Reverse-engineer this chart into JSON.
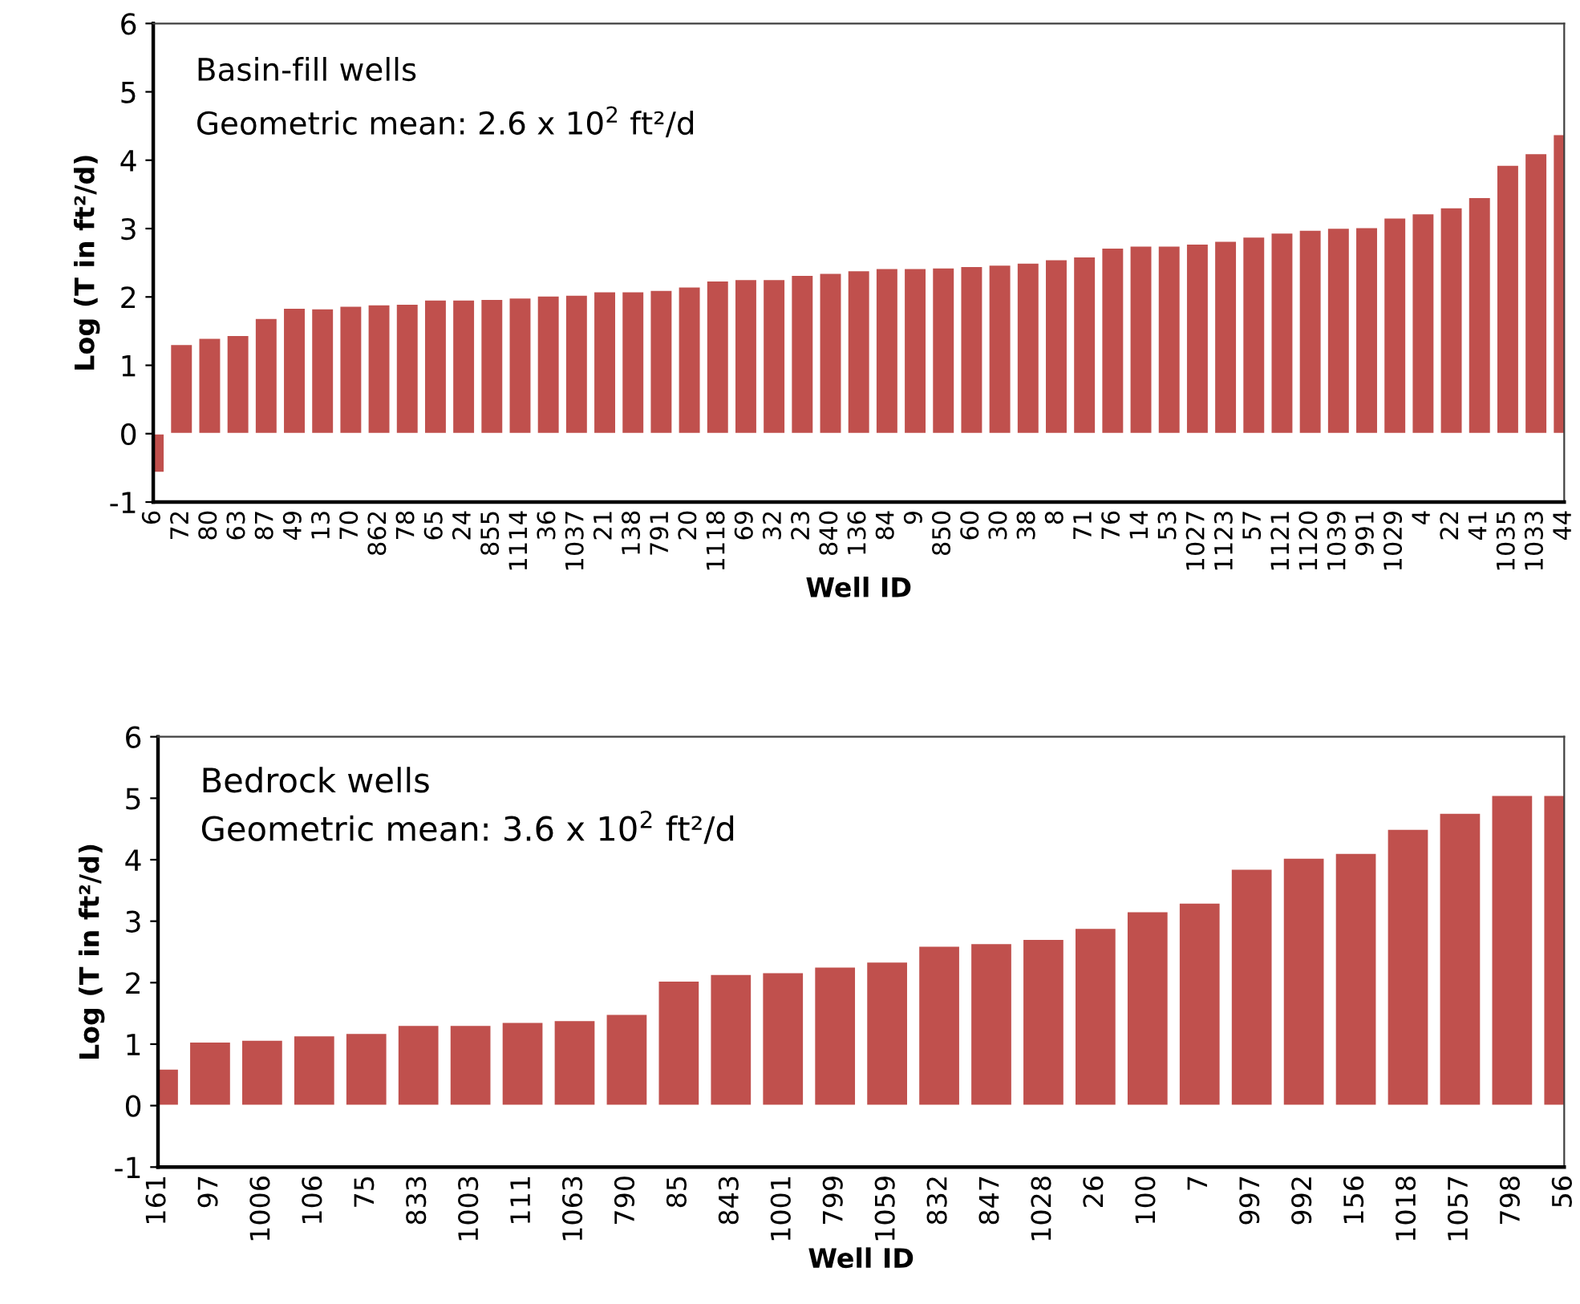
{
  "chart_data": [
    {
      "type": "bar",
      "xlabel": "Well ID",
      "ylabel": "Log (T in ft²/d)",
      "annotations": [
        "Basin-fill wells",
        "Geometric mean: 2.6 x 10$^{2}$ ft²/d"
      ],
      "categories": [
        "6",
        "72",
        "80",
        "63",
        "87",
        "49",
        "13",
        "70",
        "862",
        "78",
        "65",
        "24",
        "855",
        "1114",
        "36",
        "1037",
        "21",
        "138",
        "791",
        "20",
        "1118",
        "69",
        "32",
        "23",
        "840",
        "136",
        "84",
        "9",
        "850",
        "60",
        "30",
        "38",
        "8",
        "71",
        "76",
        "14",
        "53",
        "1027",
        "1123",
        "57",
        "1121",
        "1120",
        "1039",
        "991",
        "1029",
        "4",
        "22",
        "41",
        "1035",
        "1033",
        "44"
      ],
      "values": [
        -0.57,
        1.31,
        1.4,
        1.44,
        1.69,
        1.84,
        1.83,
        1.87,
        1.89,
        1.9,
        1.96,
        1.96,
        1.97,
        1.99,
        2.02,
        2.03,
        2.08,
        2.08,
        2.1,
        2.15,
        2.24,
        2.26,
        2.26,
        2.32,
        2.35,
        2.39,
        2.42,
        2.42,
        2.43,
        2.45,
        2.47,
        2.5,
        2.55,
        2.59,
        2.72,
        2.75,
        2.75,
        2.78,
        2.82,
        2.88,
        2.94,
        2.98,
        3.01,
        3.02,
        3.16,
        3.22,
        3.31,
        3.46,
        3.93,
        4.1,
        4.38
      ],
      "color": "#c0504d",
      "ylim": [
        -1,
        6
      ],
      "yticks": [
        -1,
        0,
        1,
        2,
        3,
        4,
        5,
        6
      ],
      "grid": false
    },
    {
      "type": "bar",
      "xlabel": "Well ID",
      "ylabel": "Log (T in ft²/d)",
      "annotations": [
        "Bedrock wells",
        "Geometric mean: 3.6 x 10$^{2}$ ft²/d"
      ],
      "categories": [
        "161",
        "97",
        "1006",
        "106",
        "75",
        "833",
        "1003",
        "111",
        "1063",
        "790",
        "85",
        "843",
        "1001",
        "799",
        "1059",
        "832",
        "847",
        "1028",
        "26",
        "100",
        "7",
        "997",
        "992",
        "156",
        "1018",
        "1057",
        "798",
        "56"
      ],
      "values": [
        0.6,
        1.04,
        1.07,
        1.14,
        1.18,
        1.31,
        1.31,
        1.36,
        1.39,
        1.49,
        2.03,
        2.14,
        2.17,
        2.26,
        2.34,
        2.6,
        2.64,
        2.71,
        2.89,
        3.16,
        3.3,
        3.85,
        4.03,
        4.11,
        4.5,
        4.76,
        5.05,
        5.05
      ],
      "color": "#c0504d",
      "ylim": [
        -1,
        6
      ],
      "yticks": [
        -1,
        0,
        1,
        2,
        3,
        4,
        5,
        6
      ],
      "grid": false
    }
  ]
}
